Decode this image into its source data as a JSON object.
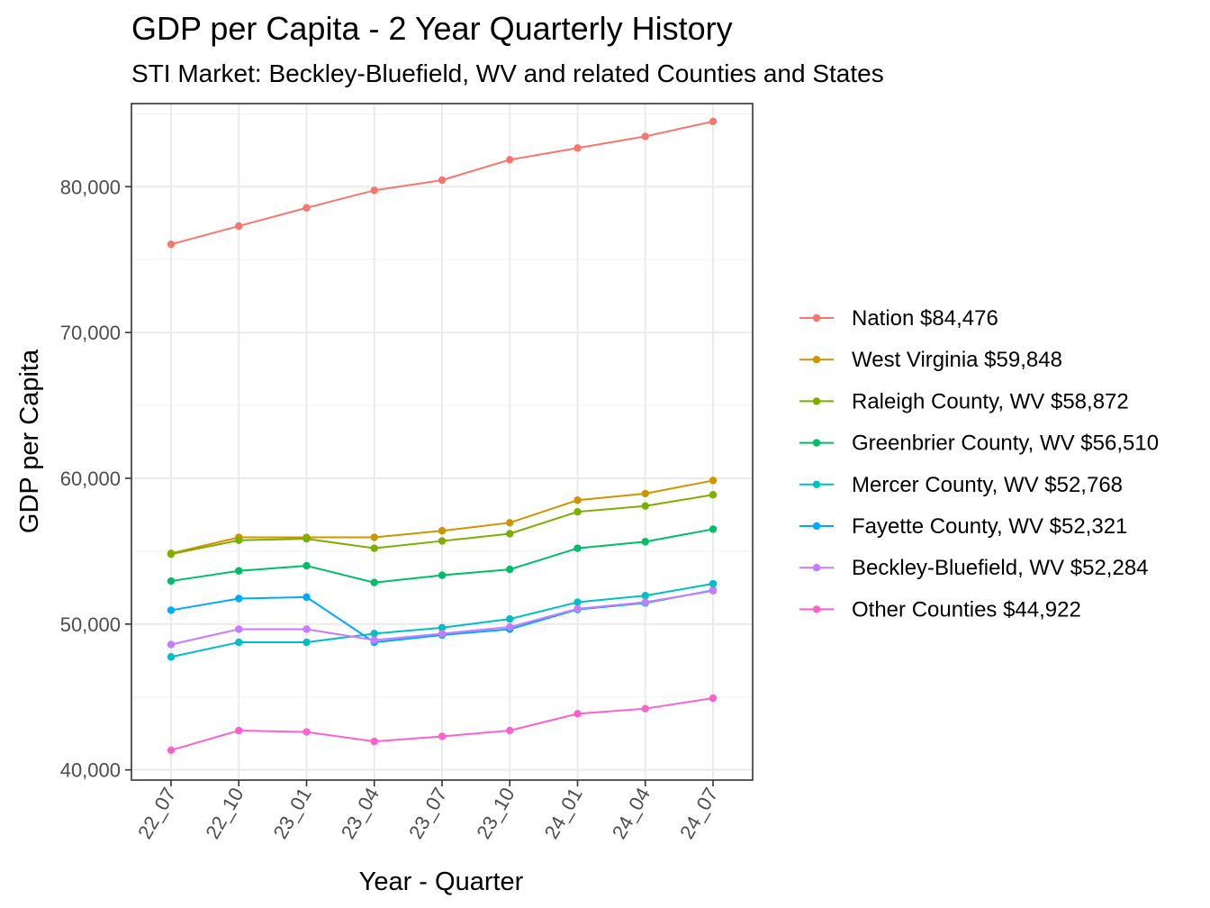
{
  "chart_data": {
    "type": "line",
    "title": "GDP per Capita - 2 Year Quarterly History",
    "subtitle": "STI Market: Beckley-Bluefield, WV and related Counties and States",
    "xlabel": "Year - Quarter",
    "ylabel": "GDP per Capita",
    "categories": [
      "22_07",
      "22_10",
      "23_01",
      "23_04",
      "23_07",
      "23_10",
      "24_01",
      "24_04",
      "24_07"
    ],
    "ylim": [
      39300,
      85700
    ],
    "yticks": [
      40000,
      50000,
      60000,
      70000,
      80000
    ],
    "ytick_labels": [
      "40,000",
      "50,000",
      "60,000",
      "70,000",
      "80,000"
    ],
    "grid": true,
    "legend_position": "right",
    "series": [
      {
        "name": "Nation $84,476",
        "color": "#F8766D",
        "values": [
          76050,
          77300,
          78550,
          79750,
          80450,
          81850,
          82650,
          83450,
          84476
        ]
      },
      {
        "name": "West Virginia $59,848",
        "color": "#CD9600",
        "values": [
          54850,
          55950,
          55950,
          55950,
          56400,
          56950,
          58500,
          58950,
          59848
        ]
      },
      {
        "name": "Raleigh County, WV $58,872",
        "color": "#7CAE00",
        "values": [
          54800,
          55750,
          55850,
          55200,
          55700,
          56200,
          57700,
          58100,
          58872
        ]
      },
      {
        "name": "Greenbrier County, WV $56,510",
        "color": "#00BE67",
        "values": [
          52950,
          53650,
          54000,
          52850,
          53350,
          53750,
          55200,
          55650,
          56510
        ]
      },
      {
        "name": "Mercer County, WV $52,768",
        "color": "#00BFC4",
        "values": [
          47750,
          48750,
          48750,
          49350,
          49750,
          50350,
          51500,
          51950,
          52768
        ]
      },
      {
        "name": "Fayette County, WV $52,321",
        "color": "#00A9FF",
        "values": [
          50950,
          51750,
          51850,
          48750,
          49250,
          49650,
          51000,
          51450,
          52321
        ]
      },
      {
        "name": "Beckley-Bluefield, WV $52,284",
        "color": "#C77CFF",
        "values": [
          48600,
          49650,
          49650,
          48900,
          49350,
          49800,
          51050,
          51500,
          52284
        ]
      },
      {
        "name": "Other Counties $44,922",
        "color": "#FF61CC",
        "values": [
          41350,
          42700,
          42600,
          41950,
          42300,
          42700,
          43850,
          44200,
          44922
        ]
      }
    ]
  }
}
